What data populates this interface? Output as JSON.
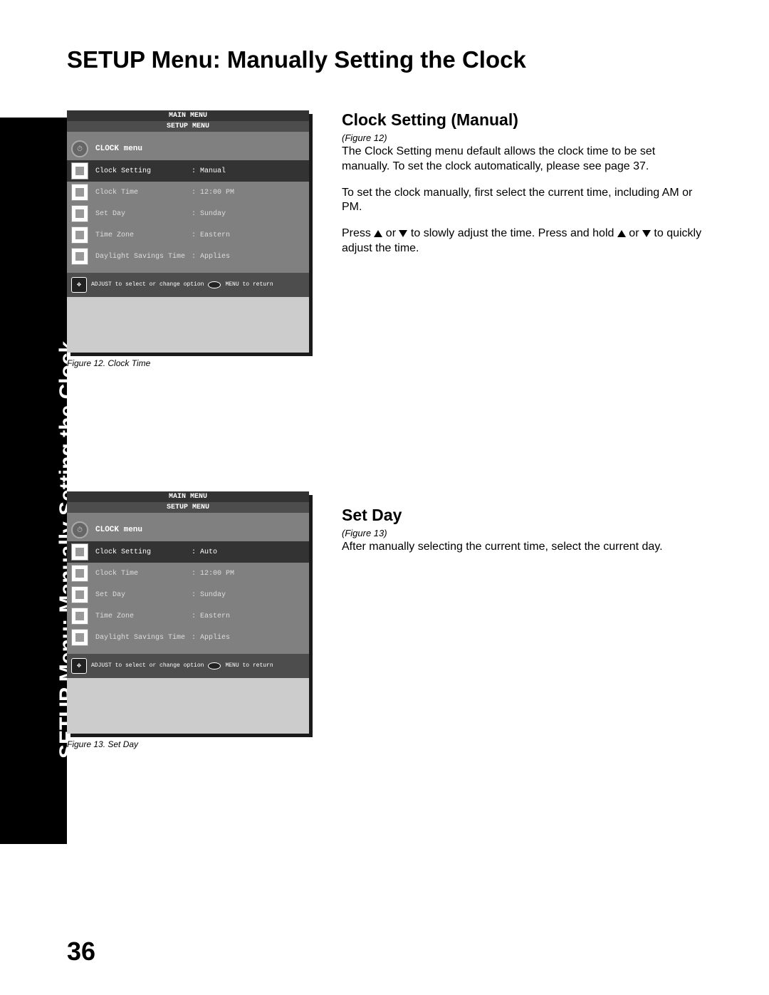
{
  "page": {
    "title": "SETUP Menu: Manually Setting the Clock",
    "vertical_title": "SETUP Menu: Manually Setting the Clock",
    "number": "36"
  },
  "figure12": {
    "main_menu": "MAIN MENU",
    "setup_menu": "SETUP MENU",
    "menu_title": "CLOCK menu",
    "items": [
      {
        "label": "Clock Setting",
        "value": ": Manual",
        "selected": true
      },
      {
        "label": "Clock Time",
        "value": ": 12:00 PM",
        "selected": false
      },
      {
        "label": "Set Day",
        "value": ": Sunday",
        "selected": false
      },
      {
        "label": "Time Zone",
        "value": ": Eastern",
        "selected": false
      },
      {
        "label": "Daylight Savings Time",
        "value": ": Applies",
        "selected": false
      }
    ],
    "footer_adjust": "ADJUST to select\nor change option",
    "footer_return": "MENU to return",
    "caption": "Figure 12.  Clock Time"
  },
  "figure13": {
    "main_menu": "MAIN MENU",
    "setup_menu": "SETUP MENU",
    "menu_title": "CLOCK menu",
    "items": [
      {
        "label": "Clock Setting",
        "value": ": Auto",
        "selected": true
      },
      {
        "label": "Clock Time",
        "value": ": 12:00 PM",
        "selected": false
      },
      {
        "label": "Set Day",
        "value": ": Sunday",
        "selected": false
      },
      {
        "label": "Time Zone",
        "value": ": Eastern",
        "selected": false
      },
      {
        "label": "Daylight Savings Time",
        "value": ": Applies",
        "selected": false
      }
    ],
    "footer_adjust": "ADJUST to select\nor change option",
    "footer_return": "MENU to return",
    "caption": "Figure 13.  Set Day"
  },
  "section1": {
    "heading": "Clock Setting (Manual)",
    "figure_ref": "(Figure 12)",
    "para1": "The Clock Setting menu default allows the clock time to be set manually.  To set the clock automatically, please see page 37.",
    "para2": "To set the clock manually, first select the current time, including AM or PM.",
    "para3a": "Press ",
    "para3b": " or  ",
    "para3c": " to slowly adjust the time.  Press and hold ",
    "para3d": " or ",
    "para3e": " to quickly adjust the time."
  },
  "section2": {
    "heading": "Set Day",
    "figure_ref": "(Figure 13)",
    "para1": "After manually selecting the current time, select the current day."
  }
}
